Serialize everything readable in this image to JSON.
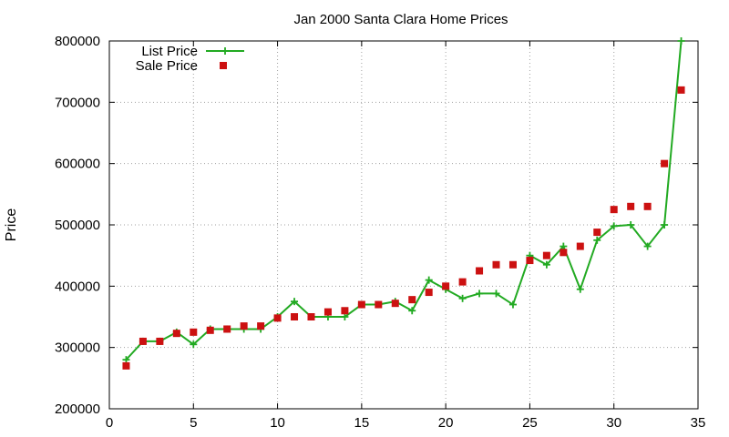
{
  "chart_data": {
    "type": "line",
    "title": "Jan 2000 Santa Clara Home Prices",
    "xlabel": "",
    "ylabel": "Price",
    "xlim": [
      0,
      35
    ],
    "ylim": [
      200000,
      800000
    ],
    "xticks": [
      "0",
      "5",
      "10",
      "15",
      "20",
      "25",
      "30",
      "35"
    ],
    "yticks": [
      "200000",
      "300000",
      "400000",
      "500000",
      "600000",
      "700000",
      "800000"
    ],
    "grid": true,
    "legend_position": "top-left",
    "x": [
      1,
      2,
      3,
      4,
      5,
      6,
      7,
      8,
      9,
      10,
      11,
      12,
      13,
      14,
      15,
      16,
      17,
      18,
      19,
      20,
      21,
      22,
      23,
      24,
      25,
      26,
      27,
      28,
      29,
      30,
      31,
      32,
      33,
      34
    ],
    "series": [
      {
        "name": "List Price",
        "style": "line-with-plus-markers",
        "color": "#22aa22",
        "values": [
          280000,
          310000,
          310000,
          325000,
          305000,
          330000,
          330000,
          330000,
          330000,
          350000,
          375000,
          350000,
          350000,
          350000,
          370000,
          370000,
          375000,
          360000,
          410000,
          395000,
          380000,
          388000,
          388000,
          370000,
          450000,
          435000,
          465000,
          395000,
          475000,
          498000,
          500000,
          465000,
          500000,
          800000
        ]
      },
      {
        "name": "Sale Price",
        "style": "square-markers",
        "color": "#cc1111",
        "values": [
          270000,
          310000,
          310000,
          323000,
          325000,
          328000,
          330000,
          335000,
          335000,
          348000,
          350000,
          350000,
          358000,
          360000,
          370000,
          370000,
          372000,
          378000,
          390000,
          400000,
          407000,
          425000,
          435000,
          435000,
          442000,
          450000,
          455000,
          465000,
          488000,
          525000,
          530000,
          530000,
          600000,
          720000
        ]
      }
    ]
  }
}
